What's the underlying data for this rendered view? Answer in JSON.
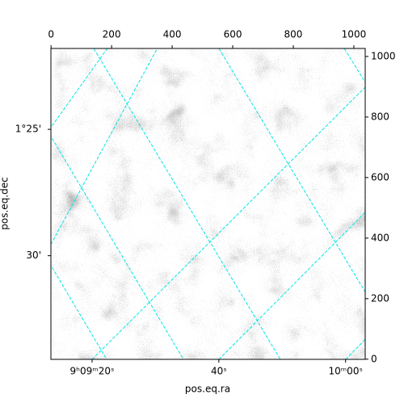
{
  "chart_data": {
    "type": "image",
    "xlabel": "pos.eq.ra",
    "ylabel": "pos.eq.dec",
    "xlim": [
      -0.5,
      1037.5
    ],
    "xticks": [
      0,
      200,
      400,
      600,
      800,
      1000
    ],
    "ylim": [
      -0.5,
      1026.5
    ],
    "yticks": [
      0,
      200,
      400,
      600,
      800,
      1000
    ],
    "ralim": [
      32953.5,
      33003.1
    ],
    "raticks": [
      {
        "value": 32960,
        "label": "9ʰ09ᵐ20ˢ"
      },
      {
        "value": 32980,
        "label": "40ˢ"
      },
      {
        "value": 33000,
        "label": "10ᵐ00ˢ"
      }
    ],
    "declim": [
      94.1,
      81.8
    ],
    "decticks": [
      {
        "value": 85,
        "label": "1°25'"
      },
      {
        "value": 90,
        "label": "30'"
      }
    ],
    "grid_color": "#00e5e5"
  }
}
